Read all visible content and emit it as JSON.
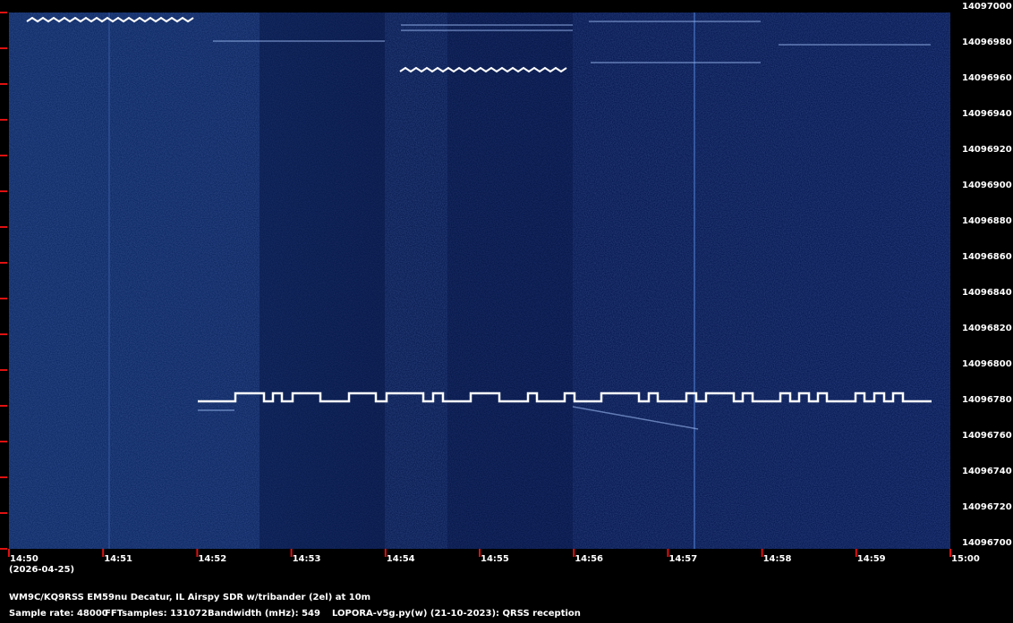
{
  "chart_data": {
    "type": "spectrogram",
    "date": "(2026-04-25)",
    "x_tick_labels": [
      "14:50",
      "14:51",
      "14:52",
      "14:53",
      "14:54",
      "14:55",
      "14:56",
      "14:57",
      "14:58",
      "14:59",
      "15:00"
    ],
    "ylim": [
      14096700,
      14097000
    ],
    "yticks": [
      14096700,
      14096720,
      14096740,
      14096760,
      14096780,
      14096800,
      14096820,
      14096840,
      14096860,
      14096880,
      14096900,
      14096920,
      14096940,
      14096960,
      14096980,
      14097000
    ],
    "tick_color": "#e01010",
    "footer": [
      "WM9C/KQ9RSS EM59nu Decatur, IL  Airspy SDR w/tribander (2el) at 10m",
      "Sample rate: 48000",
      "FFTsamples: 131072",
      "Bandwidth (mHz): 549",
      "LOPORA-v5g.py(w) (21-10-2023): QRSS reception"
    ]
  }
}
